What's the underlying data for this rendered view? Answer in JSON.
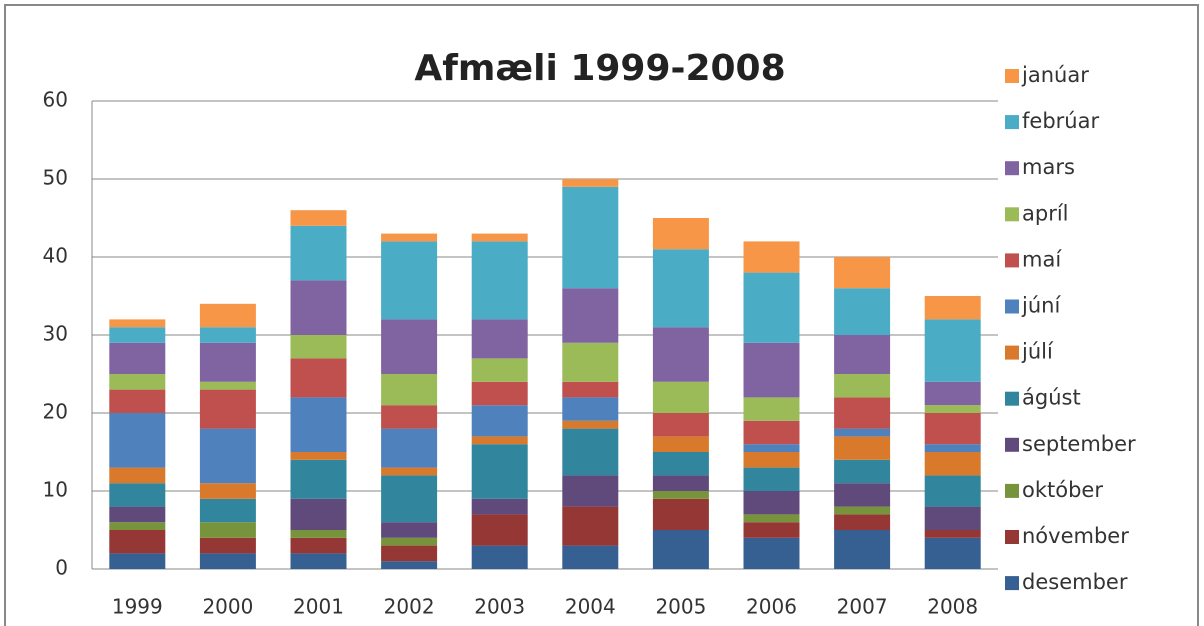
{
  "chart_data": {
    "type": "stacked_bar",
    "title": "Afmæli 1999-2008",
    "categories": [
      "1999",
      "2000",
      "2001",
      "2002",
      "2003",
      "2004",
      "2005",
      "2006",
      "2007",
      "2008"
    ],
    "series": [
      {
        "name": "janúar",
        "color": "#f79646",
        "values": [
          1,
          3,
          2,
          1,
          1,
          1,
          4,
          4,
          4,
          3
        ]
      },
      {
        "name": "febrúar",
        "color": "#4bacc6",
        "values": [
          2,
          2,
          7,
          10,
          10,
          13,
          10,
          9,
          6,
          8
        ]
      },
      {
        "name": "mars",
        "color": "#8064a2",
        "values": [
          4,
          5,
          7,
          7,
          5,
          7,
          7,
          7,
          5,
          3
        ]
      },
      {
        "name": "apríl",
        "color": "#9bbb59",
        "values": [
          2,
          1,
          3,
          4,
          3,
          5,
          4,
          3,
          3,
          1
        ]
      },
      {
        "name": "maí",
        "color": "#c0504d",
        "values": [
          3,
          5,
          5,
          3,
          3,
          2,
          3,
          3,
          4,
          4
        ]
      },
      {
        "name": "júní",
        "color": "#4f81bd",
        "values": [
          7,
          7,
          7,
          5,
          4,
          3,
          0,
          1,
          1,
          1
        ]
      },
      {
        "name": "júlí",
        "color": "#d9792b",
        "values": [
          2,
          2,
          1,
          1,
          1,
          1,
          2,
          2,
          3,
          3
        ]
      },
      {
        "name": "ágúst",
        "color": "#31859c",
        "values": [
          3,
          3,
          5,
          6,
          7,
          6,
          3,
          3,
          3,
          4
        ]
      },
      {
        "name": "september",
        "color": "#604a7b",
        "values": [
          2,
          0,
          4,
          2,
          2,
          4,
          2,
          3,
          3,
          3
        ]
      },
      {
        "name": "október",
        "color": "#77933c",
        "values": [
          1,
          2,
          1,
          1,
          0,
          0,
          1,
          1,
          1,
          0
        ]
      },
      {
        "name": "nóvember",
        "color": "#953735",
        "values": [
          3,
          2,
          2,
          2,
          4,
          5,
          4,
          2,
          2,
          1
        ]
      },
      {
        "name": "desember",
        "color": "#376092",
        "values": [
          2,
          2,
          2,
          1,
          3,
          3,
          5,
          4,
          5,
          4
        ]
      }
    ],
    "ylim": [
      0,
      60
    ],
    "yticks": [
      0,
      10,
      20,
      30,
      40,
      50,
      60
    ],
    "grid": true,
    "legend": "right"
  }
}
